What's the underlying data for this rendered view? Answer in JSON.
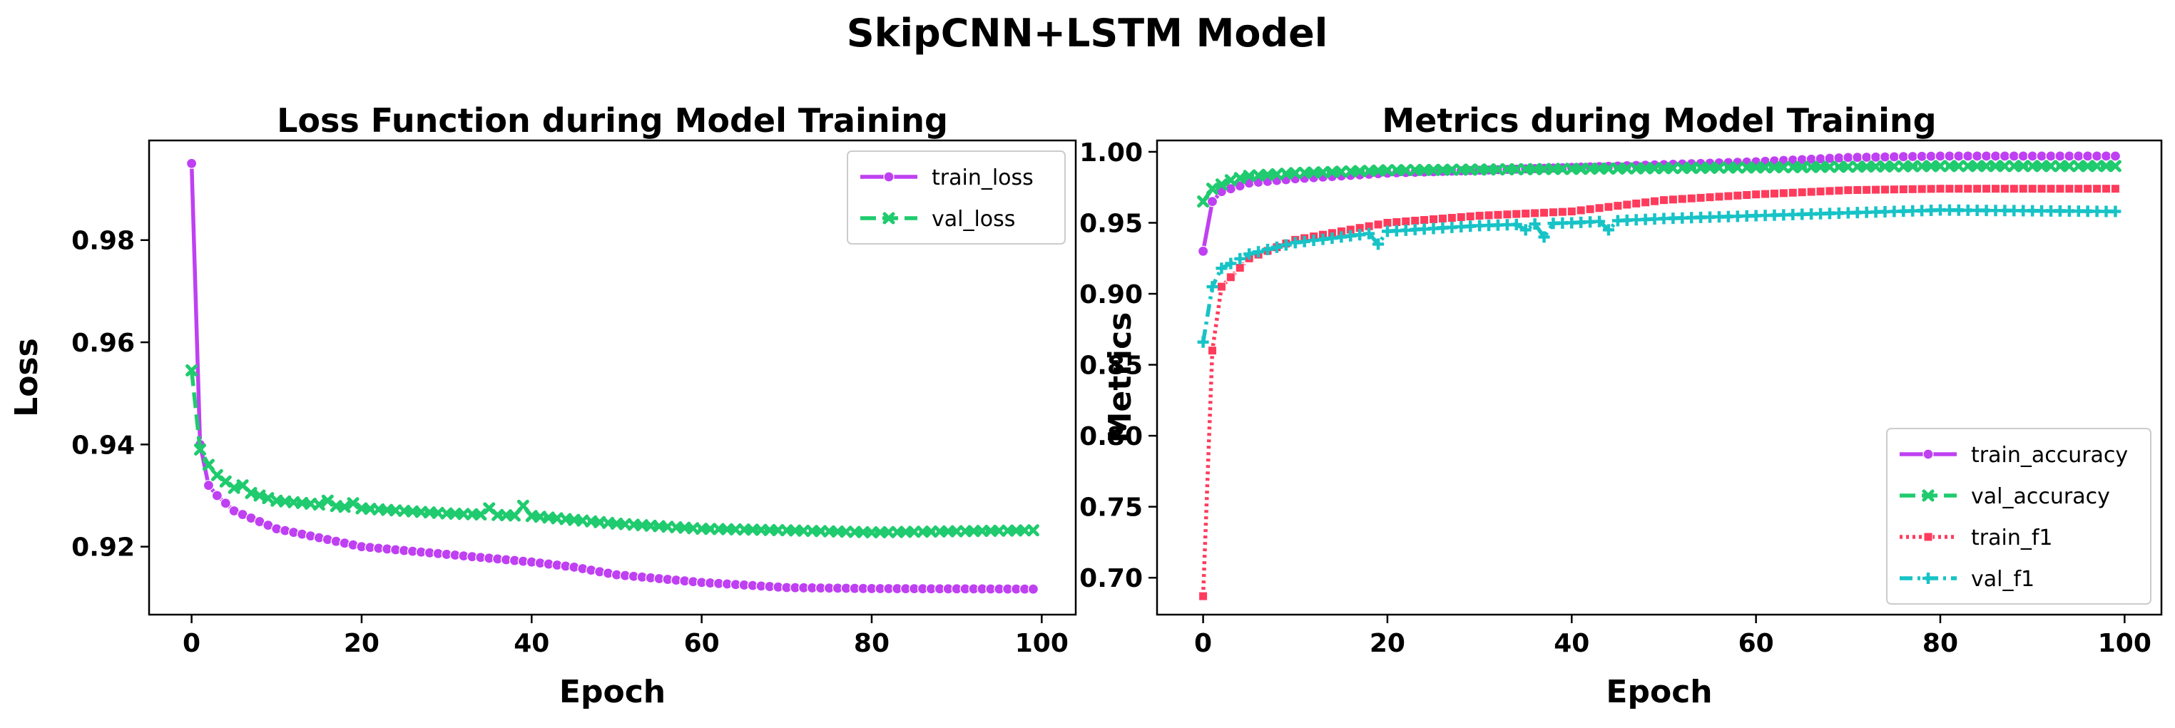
{
  "figure_title": "SkipCNN+LSTM Model",
  "chart_data": [
    {
      "type": "line",
      "title": "Loss Function during Model Training",
      "xlabel": "Epoch",
      "ylabel": "Loss",
      "xlim": [
        -5,
        104
      ],
      "ylim": [
        0.9067,
        0.9995
      ],
      "xticks": [
        0,
        20,
        40,
        60,
        80,
        100
      ],
      "yticks": [
        0.92,
        0.94,
        0.96,
        0.98
      ],
      "ytick_decimals": 2,
      "legend_position": "top-right",
      "grid": false,
      "series": [
        {
          "name": "train_loss",
          "color": "#bf40f2",
          "marker": "circle",
          "dash": "solid",
          "keypoints": [
            [
              0,
              0.995
            ],
            [
              1,
              0.94
            ],
            [
              2,
              0.932
            ],
            [
              3,
              0.93
            ],
            [
              5,
              0.927
            ],
            [
              10,
              0.9235
            ],
            [
              20,
              0.92
            ],
            [
              30,
              0.9185
            ],
            [
              40,
              0.917
            ],
            [
              45,
              0.916
            ],
            [
              50,
              0.9145
            ],
            [
              60,
              0.913
            ],
            [
              70,
              0.912
            ],
            [
              80,
              0.9118
            ],
            [
              99,
              0.9117
            ]
          ]
        },
        {
          "name": "val_loss",
          "color": "#1fcb6e",
          "marker": "x",
          "dash": "dashed",
          "keypoints": [
            [
              0,
              0.9545
            ],
            [
              1,
              0.939
            ],
            [
              2,
              0.936
            ],
            [
              3,
              0.934
            ],
            [
              5,
              0.9315
            ],
            [
              10,
              0.929
            ],
            [
              20,
              0.9275
            ],
            [
              30,
              0.9265
            ],
            [
              40,
              0.926
            ],
            [
              50,
              0.9245
            ],
            [
              60,
              0.9235
            ],
            [
              70,
              0.9232
            ],
            [
              80,
              0.9228
            ],
            [
              99,
              0.9232
            ]
          ],
          "bumps": [
            [
              6,
              0.932
            ],
            [
              16,
              0.929
            ],
            [
              19,
              0.9285
            ],
            [
              35,
              0.9275
            ],
            [
              39,
              0.928
            ]
          ]
        }
      ]
    },
    {
      "type": "line",
      "title": "Metrics during Model Training",
      "xlabel": "Epoch",
      "ylabel": "Metrics",
      "xlim": [
        -5,
        104
      ],
      "ylim": [
        0.674,
        1.008
      ],
      "xticks": [
        0,
        20,
        40,
        60,
        80,
        100
      ],
      "yticks": [
        0.7,
        0.75,
        0.8,
        0.85,
        0.9,
        0.95,
        1.0
      ],
      "ytick_decimals": 2,
      "legend_position": "bottom-right",
      "grid": false,
      "series": [
        {
          "name": "train_accuracy",
          "color": "#bf40f2",
          "marker": "circle",
          "dash": "solid",
          "keypoints": [
            [
              0,
              0.93
            ],
            [
              1,
              0.965
            ],
            [
              2,
              0.972
            ],
            [
              5,
              0.978
            ],
            [
              10,
              0.981
            ],
            [
              20,
              0.985
            ],
            [
              40,
              0.989
            ],
            [
              60,
              0.993
            ],
            [
              70,
              0.996
            ],
            [
              80,
              0.997
            ],
            [
              99,
              0.997
            ]
          ]
        },
        {
          "name": "val_accuracy",
          "color": "#1fcb6e",
          "marker": "x",
          "dash": "dashed",
          "keypoints": [
            [
              0,
              0.965
            ],
            [
              1,
              0.974
            ],
            [
              3,
              0.98
            ],
            [
              5,
              0.983
            ],
            [
              10,
              0.985
            ],
            [
              20,
              0.987
            ],
            [
              40,
              0.988
            ],
            [
              60,
              0.989
            ],
            [
              80,
              0.99
            ],
            [
              99,
              0.99
            ]
          ]
        },
        {
          "name": "train_f1",
          "color": "#ff3b5c",
          "marker": "square",
          "dash": "dotted",
          "keypoints": [
            [
              0,
              0.687
            ],
            [
              0.5,
              0.82
            ],
            [
              1,
              0.86
            ],
            [
              2,
              0.905
            ],
            [
              5,
              0.925
            ],
            [
              10,
              0.938
            ],
            [
              20,
              0.95
            ],
            [
              30,
              0.955
            ],
            [
              40,
              0.958
            ],
            [
              50,
              0.966
            ],
            [
              60,
              0.97
            ],
            [
              70,
              0.973
            ],
            [
              80,
              0.974
            ],
            [
              99,
              0.974
            ]
          ]
        },
        {
          "name": "val_f1",
          "color": "#17c3c6",
          "marker": "plus",
          "dash": "dashdot",
          "keypoints": [
            [
              0,
              0.866
            ],
            [
              1,
              0.905
            ],
            [
              2,
              0.918
            ],
            [
              5,
              0.928
            ],
            [
              10,
              0.936
            ],
            [
              20,
              0.944
            ],
            [
              30,
              0.948
            ],
            [
              40,
              0.95
            ],
            [
              50,
              0.953
            ],
            [
              60,
              0.955
            ],
            [
              70,
              0.957
            ],
            [
              80,
              0.959
            ],
            [
              99,
              0.958
            ]
          ],
          "bumps": [
            [
              19,
              0.935
            ],
            [
              35,
              0.945
            ],
            [
              37,
              0.94
            ],
            [
              44,
              0.945
            ]
          ]
        }
      ]
    }
  ]
}
